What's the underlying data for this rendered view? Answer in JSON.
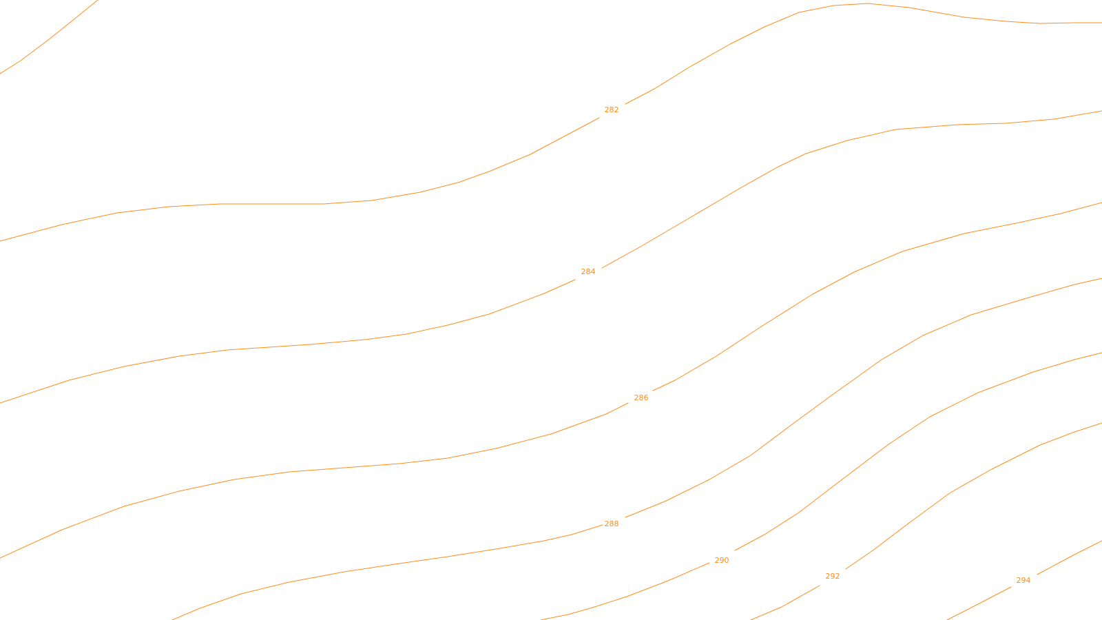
{
  "map": {
    "style": {
      "background": "#ffffff",
      "contour_color": "#ff8c1a",
      "label_color": "#ff8c1a"
    },
    "contours": [
      {
        "id": "c280",
        "label": ""
      },
      {
        "id": "c282",
        "label": "282"
      },
      {
        "id": "c284",
        "label": "284"
      },
      {
        "id": "c286",
        "label": "286"
      },
      {
        "id": "c288",
        "label": "288"
      },
      {
        "id": "c290",
        "label": "290"
      },
      {
        "id": "c292",
        "label": "292"
      },
      {
        "id": "c294",
        "label": "294"
      }
    ]
  }
}
